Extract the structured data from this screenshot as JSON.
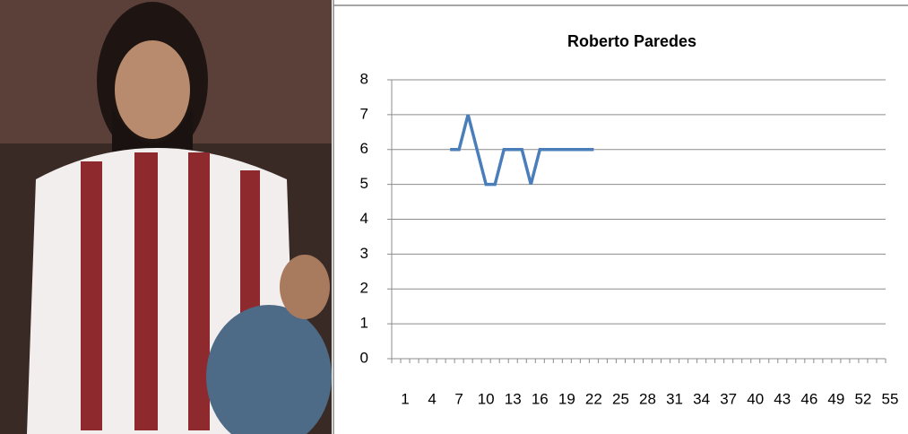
{
  "chart_data": {
    "type": "line",
    "title": "Roberto Paredes",
    "categories": [
      1,
      null,
      null,
      4,
      null,
      null,
      7,
      null,
      null,
      10,
      null,
      null,
      13,
      null,
      null,
      16,
      null,
      null,
      19,
      null,
      null,
      22,
      null,
      null,
      25,
      null,
      null,
      28,
      null,
      null,
      31,
      null,
      null,
      34,
      null,
      null,
      37,
      null,
      null,
      40,
      null,
      null,
      43,
      null,
      null,
      46,
      null,
      null,
      49,
      null,
      null,
      52,
      null,
      null,
      55
    ],
    "series": [
      {
        "name": "Roberto Paredes",
        "color": "#4a7ebb",
        "values": [
          null,
          null,
          null,
          null,
          null,
          null,
          6,
          6,
          7,
          6,
          5,
          5,
          6,
          6,
          6,
          5,
          6,
          6,
          6,
          6,
          6,
          6,
          6,
          null,
          null,
          null,
          null,
          null,
          null,
          null,
          null,
          null,
          null,
          null,
          null,
          null,
          null,
          null,
          null,
          null,
          null,
          null,
          null,
          null,
          null,
          null,
          null,
          null,
          null,
          null,
          null,
          null,
          null,
          null,
          null
        ]
      }
    ],
    "ylim": [
      0,
      8
    ],
    "yticks": [
      0,
      1,
      2,
      3,
      4,
      5,
      6,
      7,
      8
    ],
    "grid": true
  }
}
